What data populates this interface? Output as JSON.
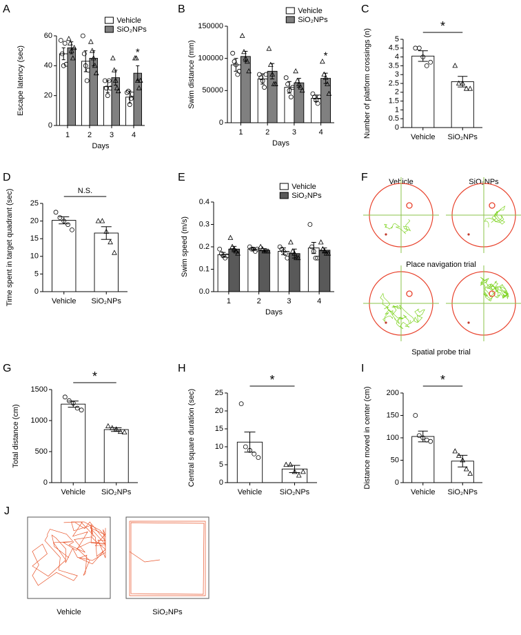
{
  "chart_data": [
    {
      "panel": "A",
      "type": "bar",
      "ylabel": "Escape latency (sec)",
      "xlabel": "Days",
      "categories": [
        "1",
        "2",
        "3",
        "4"
      ],
      "series": [
        {
          "name": "Vehicle",
          "color": "#ffffff",
          "marker": "circle",
          "values": [
            48,
            43,
            26,
            19
          ],
          "errors": [
            4,
            7,
            4,
            4
          ],
          "points": [
            [
              57,
              48,
              40,
              55,
              41
            ],
            [
              60,
              48,
              40,
              30,
              37
            ],
            [
              30,
              25,
              20,
              30,
              25
            ],
            [
              22,
              23,
              14,
              18,
              21
            ]
          ]
        },
        {
          "name": "SiO₂NPs",
          "color": "#808080",
          "marker": "triangle",
          "values": [
            52,
            45,
            32,
            35
          ],
          "errors": [
            4,
            5,
            5,
            5
          ],
          "points": [
            [
              58,
              55,
              50,
              45,
              52
            ],
            [
              56,
              50,
              45,
              40,
              35
            ],
            [
              45,
              37,
              30,
              25,
              23
            ],
            [
              45,
              45,
              30,
              25,
              30
            ]
          ]
        }
      ],
      "ylim": [
        0,
        60
      ],
      "yticks": [
        0,
        20,
        40,
        60
      ],
      "legend": "upper right",
      "annotations": [
        "*"
      ]
    },
    {
      "panel": "B",
      "type": "bar",
      "ylabel": "Swim distance (mm)",
      "xlabel": "Days",
      "categories": [
        "1",
        "2",
        "3",
        "4"
      ],
      "series": [
        {
          "name": "Vehicle",
          "color": "#ffffff",
          "marker": "circle",
          "values": [
            90000,
            68000,
            55000,
            38000
          ],
          "errors": [
            10000,
            8000,
            9000,
            5000
          ],
          "points": [
            [
              108000,
              95000,
              90000,
              75000,
              80000
            ],
            [
              75000,
              70000,
              65000,
              55000,
              75000
            ],
            [
              70000,
              60000,
              50000,
              40000,
              55000
            ],
            [
              45000,
              40000,
              35000,
              30000,
              40000
            ]
          ]
        },
        {
          "name": "SiO₂NPs",
          "color": "#808080",
          "marker": "triangle",
          "values": [
            103000,
            80000,
            62000,
            69000
          ],
          "errors": [
            8000,
            12000,
            7000,
            8000
          ],
          "points": [
            [
              135000,
              110000,
              100000,
              95000,
              80000
            ],
            [
              115000,
              90000,
              75000,
              60000,
              60000
            ],
            [
              80000,
              65000,
              60000,
              55000,
              50000
            ],
            [
              95000,
              75000,
              70000,
              60000,
              45000
            ]
          ]
        }
      ],
      "ylim": [
        0,
        150000
      ],
      "yticks": [
        0,
        50000,
        100000,
        150000
      ],
      "legend": "upper right",
      "annotations": [
        "*"
      ]
    },
    {
      "panel": "C",
      "type": "bar",
      "ylabel": "Number of platform crossings (n)",
      "categories": [
        "Vehicle",
        "SiO₂NPs"
      ],
      "color": "#ffffff",
      "markers": [
        "circle",
        "triangle"
      ],
      "values": [
        4.05,
        2.6
      ],
      "errors": [
        0.3,
        0.3
      ],
      "points": [
        [
          4.5,
          4.5,
          4,
          3.5,
          3.7
        ],
        [
          3.5,
          2.5,
          2.5,
          2.2,
          2.2
        ]
      ],
      "ylim": [
        0,
        5
      ],
      "yticks": [
        0,
        0.5,
        1,
        1.5,
        2,
        2.5,
        3,
        3.5,
        4,
        4.5,
        5
      ],
      "annotations": [
        "*"
      ]
    },
    {
      "panel": "D",
      "type": "bar",
      "ylabel": "Time spent in target quadrant (sec)",
      "categories": [
        "Vehicle",
        "SiO₂NPs"
      ],
      "color": "#ffffff",
      "markers": [
        "circle",
        "triangle"
      ],
      "values": [
        20.2,
        16.6
      ],
      "errors": [
        1,
        1.8
      ],
      "points": [
        [
          22.5,
          21,
          20,
          19,
          17.5
        ],
        [
          20,
          20,
          17,
          14,
          11
        ]
      ],
      "ylim": [
        0,
        25
      ],
      "yticks": [
        0,
        5,
        10,
        15,
        20,
        25
      ],
      "annotations": [
        "N.S."
      ]
    },
    {
      "panel": "E",
      "type": "bar",
      "ylabel": "Swim speed (m/s)",
      "xlabel": "Days",
      "categories": [
        "1",
        "2",
        "3",
        "4"
      ],
      "series": [
        {
          "name": "Vehicle",
          "color": "#ffffff",
          "marker": "circle",
          "values": [
            0.165,
            0.19,
            0.18,
            0.195
          ],
          "errors": [
            0.01,
            0.005,
            0.015,
            0.025
          ],
          "points": [
            [
              0.19,
              0.17,
              0.16,
              0.15,
              0.16
            ],
            [
              0.2,
              0.19,
              0.19,
              0.18,
              0.19
            ],
            [
              0.2,
              0.19,
              0.18,
              0.17,
              0.15
            ],
            [
              0.3,
              0.2,
              0.18,
              0.15,
              0.15
            ]
          ]
        },
        {
          "name": "SiO₂NPs",
          "color": "#595959",
          "marker": "triangle",
          "values": [
            0.19,
            0.185,
            0.17,
            0.185
          ],
          "errors": [
            0.012,
            0.007,
            0.02,
            0.01
          ],
          "points": [
            [
              0.24,
              0.2,
              0.19,
              0.18,
              0.17
            ],
            [
              0.2,
              0.19,
              0.18,
              0.18,
              0.18
            ],
            [
              0.22,
              0.18,
              0.17,
              0.15,
              0.15
            ],
            [
              0.22,
              0.19,
              0.18,
              0.17,
              0.17
            ]
          ]
        }
      ],
      "ylim": [
        0,
        0.4
      ],
      "yticks": [
        {
          "value": 0,
          "label": "0.0"
        },
        0.1,
        0.2,
        0.3,
        0.4
      ],
      "legend": "upper right"
    },
    {
      "panel": "G",
      "type": "bar",
      "ylabel": "Total distance (cm)",
      "categories": [
        "Vehicle",
        "SiO₂NPs"
      ],
      "color": "#ffffff",
      "markers": [
        "circle",
        "triangle"
      ],
      "values": [
        1265,
        855
      ],
      "errors": [
        50,
        30
      ],
      "points": [
        [
          1380,
          1320,
          1280,
          1200,
          1170
        ],
        [
          910,
          880,
          860,
          820,
          810
        ]
      ],
      "ylim": [
        0,
        1500
      ],
      "yticks": [
        0,
        500,
        1000,
        1500
      ],
      "annotations": [
        "*"
      ]
    },
    {
      "panel": "H",
      "type": "bar",
      "ylabel": "Central square duration (sec)",
      "categories": [
        "Vehicle",
        "SiO₂NPs"
      ],
      "color": "#ffffff",
      "markers": [
        "circle",
        "triangle"
      ],
      "values": [
        11.3,
        3.8
      ],
      "errors": [
        2.8,
        1
      ],
      "points": [
        [
          22,
          10,
          9,
          8,
          7
        ],
        [
          5,
          5,
          3,
          2,
          3
        ]
      ],
      "ylim": [
        0,
        25
      ],
      "yticks": [
        0,
        5,
        10,
        15,
        20,
        25
      ],
      "annotations": [
        "*"
      ]
    },
    {
      "panel": "I",
      "type": "bar",
      "ylabel": "Distance moved in center (cm)",
      "categories": [
        "Vehicle",
        "SiO₂NPs"
      ],
      "color": "#ffffff",
      "markers": [
        "circle",
        "triangle"
      ],
      "values": [
        103,
        48
      ],
      "errors": [
        12,
        13
      ],
      "points": [
        [
          150,
          105,
          100,
          95,
          92
        ],
        [
          70,
          60,
          50,
          30,
          20
        ]
      ],
      "ylim": [
        0,
        200
      ],
      "yticks": [
        0,
        50,
        100,
        150,
        200
      ],
      "annotations": [
        "*"
      ]
    }
  ],
  "figure_f": {
    "panel": "F",
    "columns": [
      "Vehicle",
      "SiO₂NPs"
    ],
    "rows": [
      "Place navigation trial",
      "Spatial probe trial"
    ]
  },
  "figure_j": {
    "panel": "J",
    "labels": [
      "Vehicle",
      "SiO₂NPs"
    ]
  }
}
